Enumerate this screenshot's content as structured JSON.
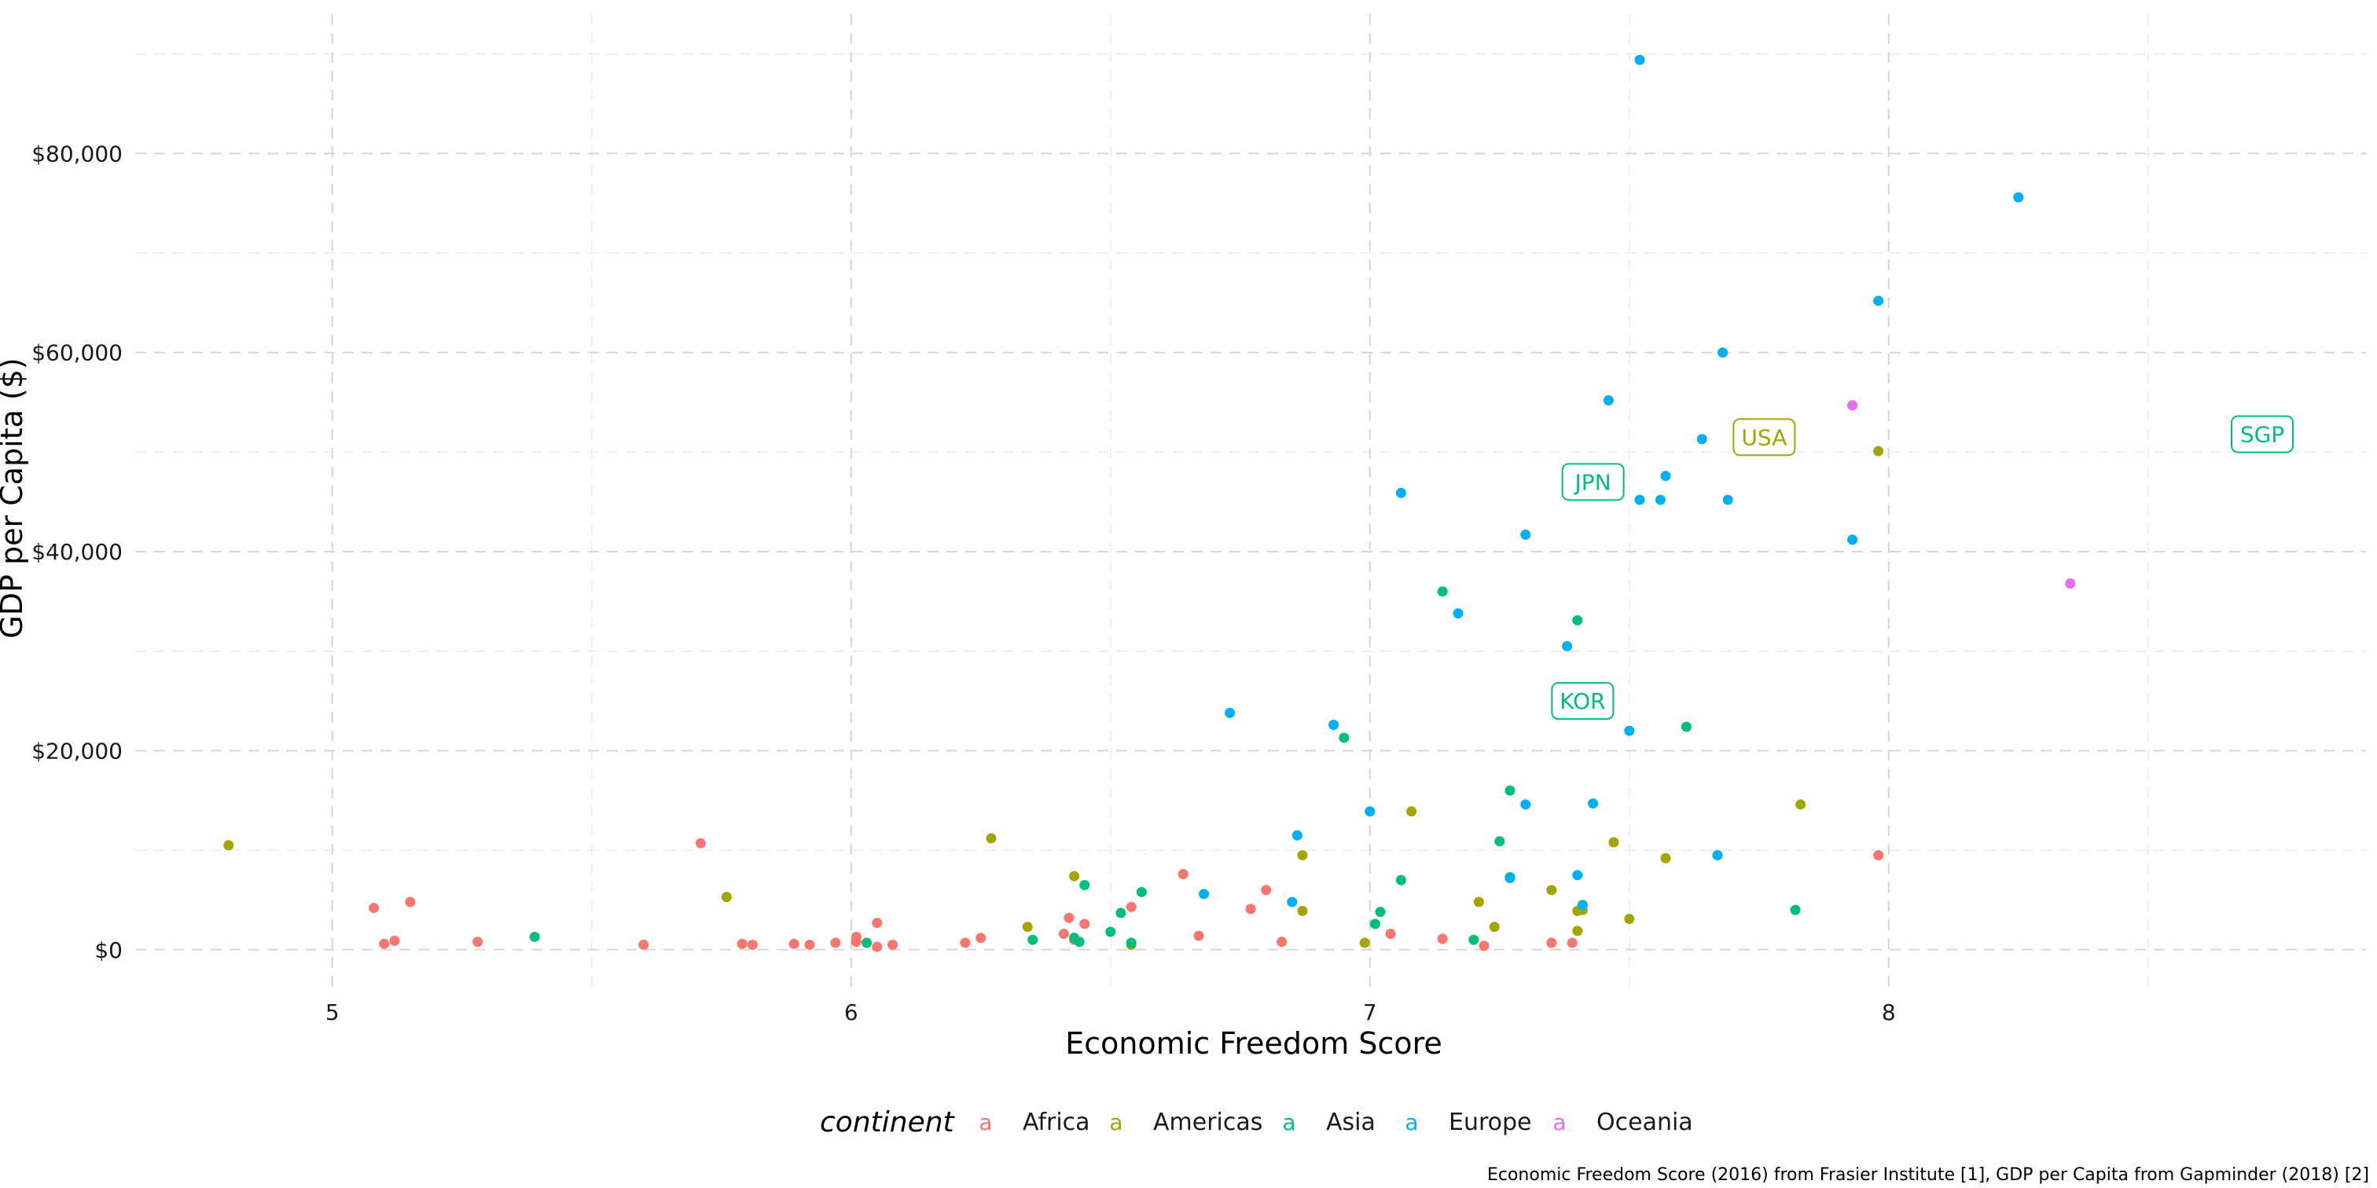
{
  "chart_data": {
    "type": "scatter",
    "title": "",
    "xlabel": "Economic Freedom Score",
    "ylabel": "GDP per Capita ($)",
    "xlim": [
      4.62,
      8.92
    ],
    "ylim": [
      -4200,
      94000
    ],
    "x_ticks": [
      5,
      6,
      7,
      8
    ],
    "x_tick_labels": [
      "5",
      "6",
      "7",
      "8"
    ],
    "y_ticks": [
      0,
      20000,
      40000,
      60000,
      80000
    ],
    "y_tick_labels": [
      "$0",
      "$20,000",
      "$40,000",
      "$60,000",
      "$80,000"
    ],
    "grid": true,
    "legend": {
      "title": "continent",
      "position": "bottom",
      "key_glyph": "a",
      "entries": [
        {
          "name": "Africa",
          "color": "#F8766D"
        },
        {
          "name": "Americas",
          "color": "#A3A500"
        },
        {
          "name": "Asia",
          "color": "#00BF7D"
        },
        {
          "name": "Europe",
          "color": "#00B0F6"
        },
        {
          "name": "Oceania",
          "color": "#E76BF3"
        }
      ]
    },
    "series": [
      {
        "name": "Africa",
        "color": "#F8766D",
        "points": [
          [
            5.08,
            4200
          ],
          [
            5.1,
            600
          ],
          [
            5.12,
            900
          ],
          [
            5.15,
            4800
          ],
          [
            5.28,
            800
          ],
          [
            5.6,
            500
          ],
          [
            5.71,
            10700
          ],
          [
            5.79,
            600
          ],
          [
            5.81,
            500
          ],
          [
            5.89,
            600
          ],
          [
            5.92,
            500
          ],
          [
            5.97,
            700
          ],
          [
            6.01,
            1300
          ],
          [
            6.01,
            800
          ],
          [
            6.05,
            2700
          ],
          [
            6.05,
            300
          ],
          [
            6.08,
            500
          ],
          [
            6.22,
            700
          ],
          [
            6.25,
            1200
          ],
          [
            6.41,
            1600
          ],
          [
            6.42,
            3200
          ],
          [
            6.43,
            1000
          ],
          [
            6.45,
            2600
          ],
          [
            6.54,
            4300
          ],
          [
            6.64,
            7600
          ],
          [
            6.67,
            1400
          ],
          [
            6.77,
            4100
          ],
          [
            6.8,
            6000
          ],
          [
            6.83,
            800
          ],
          [
            7.04,
            1600
          ],
          [
            7.14,
            1100
          ],
          [
            7.22,
            400
          ],
          [
            7.35,
            700
          ],
          [
            7.39,
            700
          ],
          [
            7.98,
            9500
          ]
        ]
      },
      {
        "name": "Americas",
        "color": "#A3A500",
        "points": [
          [
            4.8,
            10500
          ],
          [
            5.76,
            5300
          ],
          [
            6.27,
            11200
          ],
          [
            6.34,
            2300
          ],
          [
            6.43,
            7400
          ],
          [
            6.54,
            500
          ],
          [
            6.87,
            9500
          ],
          [
            6.87,
            3900
          ],
          [
            6.99,
            700
          ],
          [
            7.08,
            13900
          ],
          [
            7.21,
            4800
          ],
          [
            7.24,
            2300
          ],
          [
            7.35,
            6000
          ],
          [
            7.4,
            1900
          ],
          [
            7.4,
            3900
          ],
          [
            7.41,
            4000
          ],
          [
            7.47,
            10800
          ],
          [
            7.5,
            3100
          ],
          [
            7.57,
            9200
          ],
          [
            7.83,
            14600
          ],
          [
            7.98,
            50100
          ]
        ]
      },
      {
        "name": "Asia",
        "color": "#00BF7D",
        "points": [
          [
            5.39,
            1300
          ],
          [
            6.03,
            700
          ],
          [
            6.35,
            1000
          ],
          [
            6.43,
            1200
          ],
          [
            6.44,
            800
          ],
          [
            6.45,
            6500
          ],
          [
            6.5,
            1800
          ],
          [
            6.52,
            3700
          ],
          [
            6.54,
            700
          ],
          [
            6.56,
            5800
          ],
          [
            6.95,
            21300
          ],
          [
            7.01,
            2600
          ],
          [
            7.02,
            3800
          ],
          [
            7.06,
            7000
          ],
          [
            7.14,
            36000
          ],
          [
            7.2,
            1000
          ],
          [
            7.25,
            10900
          ],
          [
            7.27,
            16000
          ],
          [
            7.27,
            7300
          ],
          [
            7.4,
            33100
          ],
          [
            7.61,
            22400
          ],
          [
            7.82,
            4000
          ]
        ]
      },
      {
        "name": "Europe",
        "color": "#00B0F6",
        "points": [
          [
            6.68,
            5600
          ],
          [
            6.73,
            23800
          ],
          [
            6.85,
            4800
          ],
          [
            6.86,
            11500
          ],
          [
            6.93,
            22600
          ],
          [
            7.0,
            13900
          ],
          [
            7.06,
            45900
          ],
          [
            7.17,
            33800
          ],
          [
            7.27,
            7200
          ],
          [
            7.3,
            41700
          ],
          [
            7.3,
            14600
          ],
          [
            7.38,
            30500
          ],
          [
            7.4,
            7500
          ],
          [
            7.41,
            4500
          ],
          [
            7.43,
            14700
          ],
          [
            7.46,
            55200
          ],
          [
            7.5,
            22000
          ],
          [
            7.52,
            89400
          ],
          [
            7.52,
            45200
          ],
          [
            7.56,
            45200
          ],
          [
            7.57,
            47600
          ],
          [
            7.64,
            51300
          ],
          [
            7.67,
            9500
          ],
          [
            7.68,
            60000
          ],
          [
            7.69,
            45200
          ],
          [
            7.93,
            41200
          ],
          [
            7.98,
            65200
          ],
          [
            8.25,
            75600
          ]
        ]
      },
      {
        "name": "Oceania",
        "color": "#E76BF3",
        "points": [
          [
            7.93,
            54700
          ],
          [
            8.35,
            36800
          ]
        ]
      }
    ],
    "annotations": [
      {
        "text": "USA",
        "x": 7.76,
        "y": 51500,
        "color": "#A3A500"
      },
      {
        "text": "JPN",
        "x": 7.43,
        "y": 47000,
        "color": "#00BF7D"
      },
      {
        "text": "KOR",
        "x": 7.41,
        "y": 25000,
        "color": "#00BF7D"
      },
      {
        "text": "SGP",
        "x": 8.72,
        "y": 51800,
        "color": "#00BF7D"
      }
    ],
    "caption": "Economic Freedom Score (2016) from Frasier Institute [1], GDP per Capita from Gapminder (2018) [2]"
  }
}
